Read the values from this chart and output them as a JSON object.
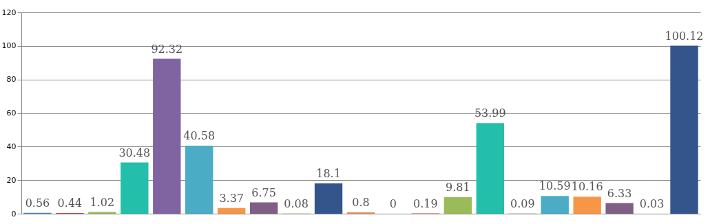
{
  "chart_data": {
    "type": "bar",
    "categories": [
      null,
      null,
      null,
      null,
      null,
      null,
      null,
      null,
      null,
      null,
      null,
      null,
      null,
      null,
      null,
      null,
      null,
      null,
      null,
      null,
      null
    ],
    "values": [
      0.56,
      0.44,
      1.02,
      30.48,
      92.32,
      40.58,
      3.37,
      6.75,
      0.08,
      18.1,
      0.8,
      0,
      0.19,
      9.81,
      53.99,
      0.09,
      10.59,
      10.16,
      6.33,
      0.03,
      100.12
    ],
    "colors": [
      "#4f81bc",
      "#c0504e",
      "#9bbb58",
      "#23bfaa",
      "#8064a1",
      "#4aacc5",
      "#f79647",
      "#7f6084",
      "#77a033",
      "#33558b",
      "#e59566",
      "#4f81bc",
      "#c0504e",
      "#9bbb58",
      "#23bfaa",
      "#8064a1",
      "#4aacc5",
      "#f79647",
      "#7f6084",
      "#77a033",
      "#33558b"
    ],
    "ylim": [
      0,
      120
    ],
    "yticks": [
      0,
      20,
      40,
      60,
      80,
      100,
      120
    ],
    "grid": "y",
    "data_labels": true
  }
}
